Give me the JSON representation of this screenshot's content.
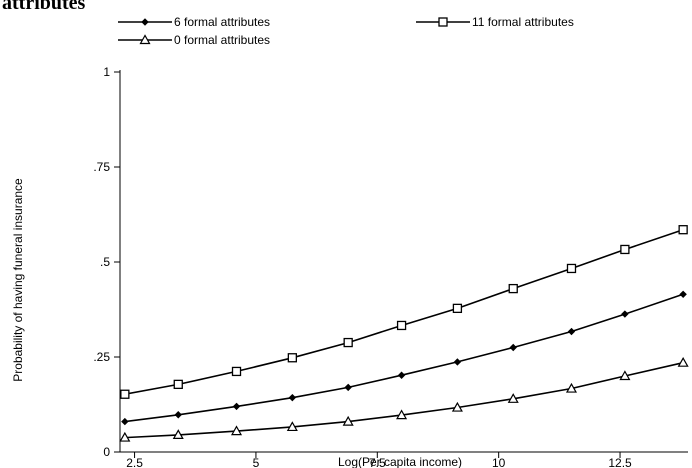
{
  "page_title_fragment": "attributes",
  "chart_data": {
    "type": "line",
    "title": "",
    "xlabel": "Log(Per capita income)",
    "ylabel": "Probability of having funeral insurance",
    "xlim": [
      2.2,
      13.9
    ],
    "ylim": [
      0,
      1
    ],
    "x_ticks": [
      {
        "value": 2.5,
        "label": "2.5"
      },
      {
        "value": 5,
        "label": "5"
      },
      {
        "value": 7.5,
        "label": "7.5"
      },
      {
        "value": 10,
        "label": "10"
      },
      {
        "value": 12.5,
        "label": "12.5"
      }
    ],
    "y_ticks": [
      {
        "value": 0,
        "label": "0"
      },
      {
        "value": 0.25,
        "label": ".25"
      },
      {
        "value": 0.5,
        "label": ".5"
      },
      {
        "value": 0.75,
        "label": ".75"
      },
      {
        "value": 1,
        "label": "1"
      }
    ],
    "grid": false,
    "legend_position": "top",
    "series": [
      {
        "name": "6 formal attributes",
        "marker": "diamond",
        "x": [
          2.3,
          3.4,
          4.6,
          5.75,
          6.9,
          8.0,
          9.15,
          10.3,
          11.5,
          12.6,
          13.8
        ],
        "values": [
          0.08,
          0.098,
          0.12,
          0.143,
          0.17,
          0.202,
          0.237,
          0.275,
          0.317,
          0.363,
          0.415
        ]
      },
      {
        "name": "11 formal attributes",
        "marker": "square",
        "x": [
          2.3,
          3.4,
          4.6,
          5.75,
          6.9,
          8.0,
          9.15,
          10.3,
          11.5,
          12.6,
          13.8
        ],
        "values": [
          0.152,
          0.178,
          0.212,
          0.248,
          0.288,
          0.333,
          0.378,
          0.43,
          0.483,
          0.533,
          0.585
        ]
      },
      {
        "name": "0 formal attributes",
        "marker": "triangle",
        "x": [
          2.3,
          3.4,
          4.6,
          5.75,
          6.9,
          8.0,
          9.15,
          10.3,
          11.5,
          12.6,
          13.8
        ],
        "values": [
          0.038,
          0.045,
          0.055,
          0.066,
          0.08,
          0.097,
          0.117,
          0.14,
          0.167,
          0.2,
          0.235
        ]
      }
    ]
  }
}
